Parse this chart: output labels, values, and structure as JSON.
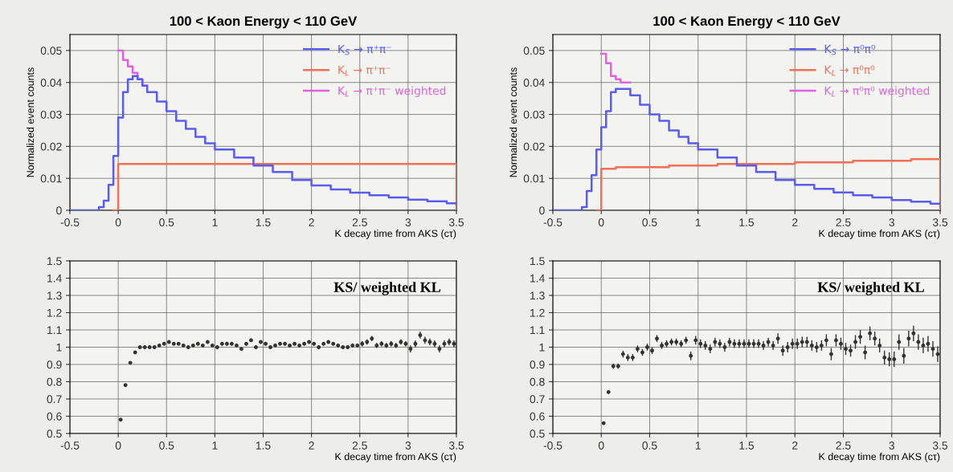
{
  "chart_data": [
    {
      "type": "step",
      "title": "100 < Kaon Energy < 110 GeV",
      "xlabel": "K decay time from AKS (cτ)",
      "ylabel": "Normalized event counts",
      "x": [
        -0.5,
        -0.25,
        -0.2,
        -0.15,
        -0.1,
        -0.05,
        0,
        0.05,
        0.1,
        0.15,
        0.2,
        0.25,
        0.3,
        0.4,
        0.5,
        0.6,
        0.7,
        0.8,
        0.9,
        1.0,
        1.2,
        1.4,
        1.6,
        1.8,
        2.0,
        2.2,
        2.4,
        2.6,
        2.8,
        3.0,
        3.2,
        3.4,
        3.5
      ],
      "series": [
        {
          "name": "K$_{S}$ → π⁺π⁻",
          "color": "#5a5cf0",
          "values": [
            0,
            0,
            0.001,
            0.003,
            0.008,
            0.017,
            0.029,
            0.037,
            0.041,
            0.042,
            0.041,
            0.039,
            0.037,
            0.034,
            0.031,
            0.028,
            0.0255,
            0.023,
            0.021,
            0.019,
            0.0165,
            0.014,
            0.012,
            0.0095,
            0.0078,
            0.0065,
            0.0055,
            0.0047,
            0.004,
            0.0033,
            0.0028,
            0.0022,
            0.002
          ]
        },
        {
          "name": "K$_{L}$ → π⁺π⁻",
          "color": "#f0705a",
          "values": [
            null,
            null,
            null,
            null,
            null,
            0,
            0.0145,
            0.0145,
            0.0145,
            0.0145,
            0.0145,
            0.0145,
            0.0145,
            0.0145,
            0.0145,
            0.0145,
            0.0145,
            0.0145,
            0.0145,
            0.0145,
            0.0145,
            0.0145,
            0.0145,
            0.0145,
            0.0145,
            0.0145,
            0.0145,
            0.0145,
            0.0145,
            0.0145,
            0.0145,
            0.0145,
            0
          ]
        },
        {
          "name": "K$_{L}$ → π⁺π⁻ weighted",
          "color": "#e060e0",
          "x": [
            0,
            0.05,
            0.1,
            0.15,
            0.2,
            0.25,
            0.3
          ],
          "values": [
            0.05,
            0.047,
            0.045,
            0.043,
            0.041,
            0.039,
            0.039
          ]
        }
      ],
      "xlim": [
        -0.5,
        3.5
      ],
      "ylim": [
        0,
        0.055
      ],
      "xticks": [
        -0.5,
        0,
        0.5,
        1,
        1.5,
        2,
        2.5,
        3,
        3.5
      ],
      "yticks": [
        0,
        0.01,
        0.02,
        0.03,
        0.04,
        0.05
      ],
      "grid": true,
      "legend": "top right"
    },
    {
      "type": "step",
      "title": "100 < Kaon Energy < 110 GeV",
      "xlabel": "K decay time from AKS (cτ)",
      "ylabel": "Normalized event counts",
      "x": [
        -0.5,
        -0.25,
        -0.2,
        -0.15,
        -0.1,
        -0.05,
        0,
        0.05,
        0.1,
        0.15,
        0.2,
        0.25,
        0.3,
        0.4,
        0.5,
        0.6,
        0.7,
        0.8,
        0.9,
        1.0,
        1.2,
        1.4,
        1.6,
        1.8,
        2.0,
        2.2,
        2.4,
        2.6,
        2.8,
        3.0,
        3.2,
        3.4,
        3.5
      ],
      "series": [
        {
          "name": "K$_{S}$ → π⁰π⁰",
          "color": "#5a5cf0",
          "values": [
            0,
            0,
            0.001,
            0.006,
            0.011,
            0.019,
            0.026,
            0.031,
            0.037,
            0.038,
            0.038,
            0.038,
            0.036,
            0.033,
            0.03,
            0.028,
            0.025,
            0.023,
            0.021,
            0.019,
            0.0165,
            0.014,
            0.012,
            0.0095,
            0.008,
            0.0067,
            0.0056,
            0.0047,
            0.004,
            0.0032,
            0.0027,
            0.0021,
            0.002
          ]
        },
        {
          "name": "K$_{L}$ → π⁰π⁰",
          "color": "#f0705a",
          "values": [
            null,
            null,
            null,
            null,
            null,
            0,
            0.013,
            0.013,
            0.013,
            0.0135,
            0.0135,
            0.0135,
            0.0135,
            0.0135,
            0.0135,
            0.0135,
            0.014,
            0.014,
            0.014,
            0.014,
            0.0145,
            0.0145,
            0.0145,
            0.0145,
            0.015,
            0.015,
            0.015,
            0.0155,
            0.0155,
            0.0155,
            0.016,
            0.016,
            0
          ]
        },
        {
          "name": "K$_{L}$ → π⁰π⁰ weighted",
          "color": "#e060e0",
          "x": [
            0,
            0.05,
            0.1,
            0.15,
            0.2,
            0.25,
            0.3
          ],
          "values": [
            0.049,
            0.046,
            0.042,
            0.041,
            0.04,
            0.04,
            0.04
          ]
        }
      ],
      "xlim": [
        -0.5,
        3.5
      ],
      "ylim": [
        0,
        0.055
      ],
      "xticks": [
        -0.5,
        0,
        0.5,
        1,
        1.5,
        2,
        2.5,
        3,
        3.5
      ],
      "yticks": [
        0,
        0.01,
        0.02,
        0.03,
        0.04,
        0.05
      ],
      "grid": true,
      "legend": "top right"
    },
    {
      "type": "scatter",
      "xlabel": "K decay time from AKS (cτ)",
      "annotations": [
        "KS/ weighted KL"
      ],
      "color": "#333333",
      "marker": "circle",
      "x": [
        0.025,
        0.075,
        0.125,
        0.175,
        0.225,
        0.275,
        0.325,
        0.375,
        0.425,
        0.475,
        0.525,
        0.575,
        0.625,
        0.675,
        0.725,
        0.775,
        0.825,
        0.875,
        0.925,
        0.975,
        1.025,
        1.075,
        1.125,
        1.175,
        1.225,
        1.275,
        1.325,
        1.375,
        1.425,
        1.475,
        1.525,
        1.575,
        1.625,
        1.675,
        1.725,
        1.775,
        1.825,
        1.875,
        1.925,
        1.975,
        2.025,
        2.075,
        2.125,
        2.175,
        2.225,
        2.275,
        2.325,
        2.375,
        2.425,
        2.475,
        2.525,
        2.575,
        2.625,
        2.675,
        2.725,
        2.775,
        2.825,
        2.875,
        2.925,
        2.975,
        3.025,
        3.075,
        3.125,
        3.175,
        3.225,
        3.275,
        3.325,
        3.375,
        3.425,
        3.475
      ],
      "values": [
        0.58,
        0.78,
        0.91,
        0.97,
        1.0,
        1.0,
        1.0,
        1.0,
        1.01,
        1.02,
        1.03,
        1.02,
        1.02,
        1.01,
        1.0,
        1.01,
        1.02,
        1.01,
        1.03,
        1.01,
        1.0,
        1.02,
        1.02,
        1.02,
        1.01,
        0.99,
        1.02,
        1.04,
        1.0,
        1.03,
        1.02,
        1.0,
        1.01,
        1.02,
        1.02,
        1.01,
        1.02,
        1.01,
        1.02,
        1.03,
        1.02,
        1.0,
        1.02,
        1.03,
        1.02,
        1.01,
        1.0,
        1.0,
        1.01,
        1.01,
        1.02,
        1.03,
        1.05,
        1.01,
        1.02,
        1.01,
        1.02,
        1.01,
        1.03,
        1.02,
        0.99,
        1.02,
        1.07,
        1.04,
        1.03,
        1.02,
        0.99,
        1.02,
        1.03,
        1.02
      ],
      "errors": [
        0.005,
        0.005,
        0.005,
        0.005,
        0.005,
        0.005,
        0.005,
        0.005,
        0.005,
        0.005,
        0.005,
        0.005,
        0.005,
        0.005,
        0.005,
        0.005,
        0.005,
        0.005,
        0.005,
        0.005,
        0.01,
        0.01,
        0.01,
        0.01,
        0.01,
        0.01,
        0.01,
        0.01,
        0.01,
        0.01,
        0.01,
        0.01,
        0.01,
        0.01,
        0.01,
        0.01,
        0.01,
        0.01,
        0.01,
        0.01,
        0.01,
        0.01,
        0.01,
        0.01,
        0.01,
        0.01,
        0.01,
        0.01,
        0.01,
        0.01,
        0.015,
        0.015,
        0.015,
        0.015,
        0.015,
        0.015,
        0.015,
        0.015,
        0.015,
        0.015,
        0.02,
        0.02,
        0.02,
        0.02,
        0.02,
        0.02,
        0.02,
        0.02,
        0.02,
        0.02
      ],
      "xlim": [
        -0.5,
        3.5
      ],
      "ylim": [
        0.5,
        1.5
      ],
      "xticks": [
        -0.5,
        0,
        0.5,
        1,
        1.5,
        2,
        2.5,
        3,
        3.5
      ],
      "yticks": [
        0.5,
        0.6,
        0.7,
        0.8,
        0.9,
        1,
        1.1,
        1.2,
        1.3,
        1.4,
        1.5
      ],
      "grid": true
    },
    {
      "type": "scatter",
      "xlabel": "K decay time from AKS (cτ)",
      "annotations": [
        "KS/ weighted KL"
      ],
      "color": "#333333",
      "marker": "circle",
      "x": [
        0.025,
        0.075,
        0.125,
        0.175,
        0.225,
        0.275,
        0.325,
        0.375,
        0.425,
        0.475,
        0.525,
        0.575,
        0.625,
        0.675,
        0.725,
        0.775,
        0.825,
        0.875,
        0.925,
        0.975,
        1.025,
        1.075,
        1.125,
        1.175,
        1.225,
        1.275,
        1.325,
        1.375,
        1.425,
        1.475,
        1.525,
        1.575,
        1.625,
        1.675,
        1.725,
        1.775,
        1.825,
        1.875,
        1.925,
        1.975,
        2.025,
        2.075,
        2.125,
        2.175,
        2.225,
        2.275,
        2.325,
        2.375,
        2.425,
        2.475,
        2.525,
        2.575,
        2.625,
        2.675,
        2.725,
        2.775,
        2.825,
        2.875,
        2.925,
        2.975,
        3.025,
        3.075,
        3.125,
        3.175,
        3.225,
        3.275,
        3.325,
        3.375,
        3.425,
        3.475
      ],
      "values": [
        0.56,
        0.74,
        0.89,
        0.89,
        0.96,
        0.94,
        0.94,
        0.99,
        0.97,
        1.0,
        0.98,
        1.05,
        1.01,
        1.02,
        1.03,
        1.03,
        1.02,
        1.04,
        0.95,
        1.04,
        1.02,
        1.01,
        0.99,
        1.03,
        1.02,
        1.0,
        1.03,
        1.02,
        1.02,
        1.02,
        1.02,
        1.02,
        1.02,
        1.01,
        1.03,
        1.01,
        1.05,
        0.98,
        1.0,
        1.02,
        1.02,
        1.03,
        1.03,
        1.01,
        1.0,
        1.01,
        1.04,
        0.96,
        1.04,
        1.02,
        0.99,
        0.98,
        1.03,
        1.06,
        0.97,
        1.08,
        1.05,
        1.01,
        0.94,
        0.93,
        0.93,
        1.03,
        0.95,
        1.05,
        1.08,
        1.03,
        1.01,
        1.02,
        0.99,
        0.96
      ],
      "errors": [
        0.01,
        0.01,
        0.015,
        0.015,
        0.02,
        0.02,
        0.02,
        0.02,
        0.02,
        0.02,
        0.02,
        0.02,
        0.02,
        0.02,
        0.02,
        0.02,
        0.02,
        0.02,
        0.025,
        0.025,
        0.025,
        0.025,
        0.025,
        0.025,
        0.025,
        0.025,
        0.025,
        0.025,
        0.025,
        0.025,
        0.025,
        0.025,
        0.025,
        0.025,
        0.025,
        0.025,
        0.03,
        0.03,
        0.03,
        0.03,
        0.03,
        0.03,
        0.03,
        0.03,
        0.03,
        0.03,
        0.035,
        0.035,
        0.035,
        0.035,
        0.035,
        0.035,
        0.04,
        0.04,
        0.04,
        0.04,
        0.04,
        0.04,
        0.04,
        0.04,
        0.045,
        0.045,
        0.045,
        0.045,
        0.045,
        0.045,
        0.045,
        0.045,
        0.045,
        0.045
      ],
      "xlim": [
        -0.5,
        3.5
      ],
      "ylim": [
        0.5,
        1.5
      ],
      "xticks": [
        -0.5,
        0,
        0.5,
        1,
        1.5,
        2,
        2.5,
        3,
        3.5
      ],
      "yticks": [
        0.5,
        0.6,
        0.7,
        0.8,
        0.9,
        1,
        1.1,
        1.2,
        1.3,
        1.4,
        1.5
      ],
      "grid": true
    }
  ]
}
